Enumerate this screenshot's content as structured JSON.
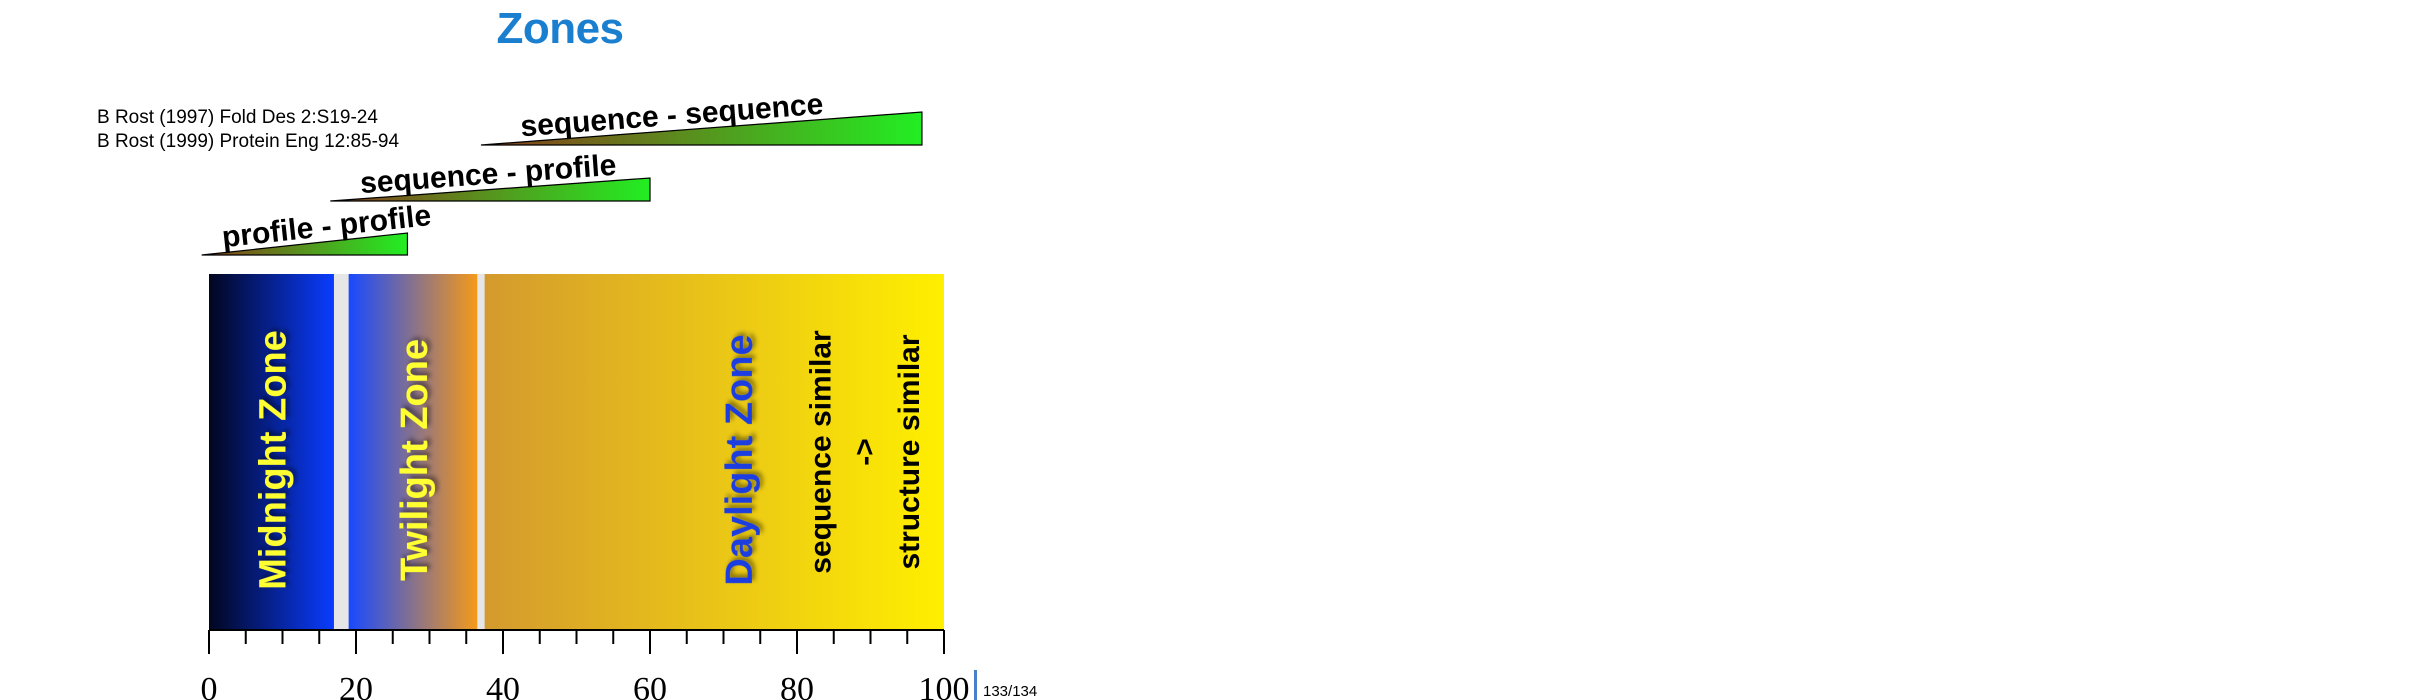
{
  "title": "Zones",
  "references": [
    "B Rost (1997) Fold Des 2:S19-24",
    "B Rost (1999) Protein Eng 12:85-94"
  ],
  "colors": {
    "title": "#1b7fd0",
    "zone_label_yellow": "#ffff33",
    "zone_label_blue": "#1c3ee0",
    "wedge_start": "#8a3a1a",
    "wedge_end": "#22ee22"
  },
  "chart_data": {
    "type": "bar",
    "xlim": [
      0,
      100
    ],
    "x_ticks": [
      "0",
      "20",
      "40",
      "60",
      "80",
      "100"
    ],
    "minor_tick_step": 5,
    "zones": [
      {
        "label": "Midnight Zone",
        "start": 0,
        "end": 17,
        "gradient": [
          "#020620",
          "#0a3cff"
        ],
        "label_color": "#ffff33"
      },
      {
        "label": "Twilight Zone",
        "start": 19,
        "end": 36.5,
        "gradient": [
          "#1849ff",
          "#f59a1a"
        ],
        "label_color": "#ffff33"
      },
      {
        "label": "Daylight Zone",
        "start": 37.5,
        "end": 100,
        "gradient": [
          "#d49a2e",
          "#ffef00"
        ],
        "label_color": "#1c3ee0"
      }
    ],
    "daylight_notes": [
      "sequence similar",
      "->",
      "structure similar"
    ],
    "methods": [
      {
        "label": "profile - profile",
        "start": -1,
        "end": 27
      },
      {
        "label": "sequence - profile",
        "start": 16.5,
        "end": 60
      },
      {
        "label": "sequence - sequence",
        "start": 37,
        "end": 97
      }
    ]
  },
  "page_number": "133/134"
}
